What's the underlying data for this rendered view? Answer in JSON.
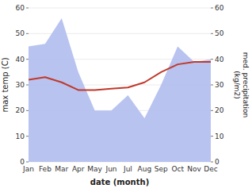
{
  "chart_data": {
    "type": "line",
    "xlabel": "date (month)",
    "ylabel": "max temp (C)",
    "y2label": "med. precipitation\n(kg/m2)",
    "categories": [
      "Jan",
      "Feb",
      "Mar",
      "Apr",
      "May",
      "Jun",
      "Jul",
      "Aug",
      "Sep",
      "Oct",
      "Nov",
      "Dec"
    ],
    "series": [
      {
        "type": "area",
        "axis": "y2",
        "color": "#b0bcee",
        "values": [
          45,
          46,
          56,
          35,
          20,
          20,
          26,
          17,
          30,
          45,
          39,
          40
        ]
      },
      {
        "type": "line",
        "color": "#c0392b",
        "values": [
          32,
          33,
          31,
          28,
          28,
          28.5,
          29,
          31,
          35,
          38,
          39,
          39
        ]
      }
    ],
    "ylim": [
      0,
      60
    ],
    "yticks": [
      0,
      10,
      20,
      30,
      40,
      50,
      60
    ],
    "y2lim": [
      0,
      60
    ],
    "y2ticks": [
      0,
      10,
      20,
      30,
      40,
      50,
      60
    ],
    "grid": true
  }
}
